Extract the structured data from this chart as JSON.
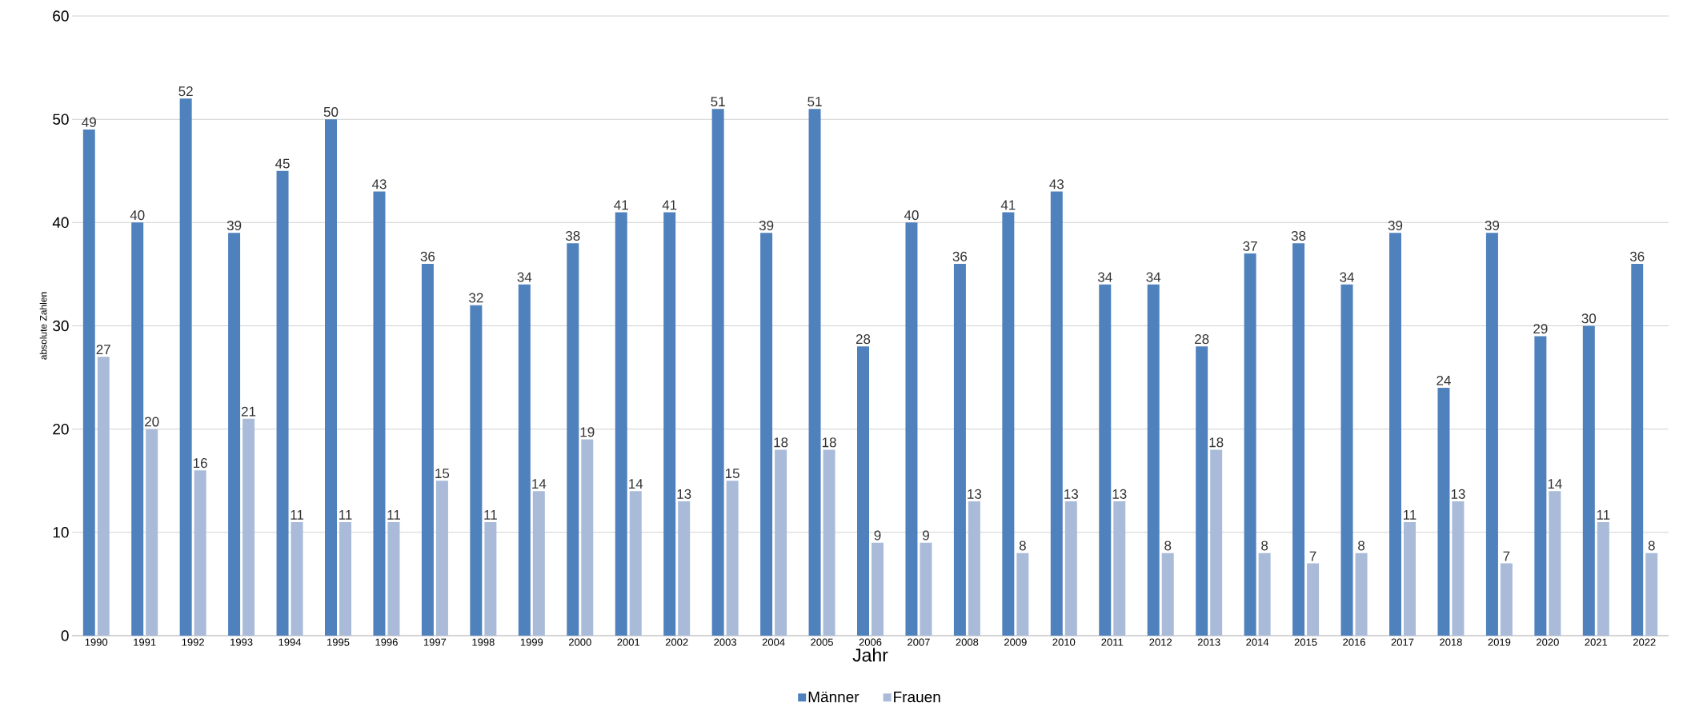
{
  "chart_data": {
    "type": "bar",
    "xlabel": "Jahr",
    "ylabel": "absolute Zahlen",
    "categories": [
      "1990",
      "1991",
      "1992",
      "1993",
      "1994",
      "1995",
      "1996",
      "1997",
      "1998",
      "1999",
      "2000",
      "2001",
      "2002",
      "2003",
      "2004",
      "2005",
      "2006",
      "2007",
      "2008",
      "2009",
      "2010",
      "2011",
      "2012",
      "2013",
      "2014",
      "2015",
      "2016",
      "2017",
      "2018",
      "2019",
      "2020",
      "2021",
      "2022"
    ],
    "series": [
      {
        "name": "Männer",
        "color": "#4f81bd",
        "values": [
          49,
          40,
          52,
          39,
          45,
          50,
          43,
          36,
          32,
          34,
          38,
          41,
          41,
          51,
          39,
          51,
          28,
          40,
          36,
          41,
          43,
          34,
          34,
          28,
          37,
          38,
          34,
          39,
          24,
          39,
          29,
          30,
          36
        ]
      },
      {
        "name": "Frauen",
        "color": "#a9bbd9",
        "values": [
          27,
          20,
          16,
          21,
          11,
          11,
          11,
          15,
          11,
          14,
          19,
          14,
          13,
          15,
          18,
          18,
          9,
          9,
          13,
          8,
          13,
          13,
          8,
          18,
          8,
          7,
          8,
          11,
          13,
          7,
          14,
          11,
          8
        ]
      }
    ],
    "ylim": [
      0,
      60
    ],
    "yticks": [
      0,
      10,
      20,
      30,
      40,
      50,
      60
    ],
    "grid": "y",
    "legend": "bottom",
    "data_labels": true
  }
}
